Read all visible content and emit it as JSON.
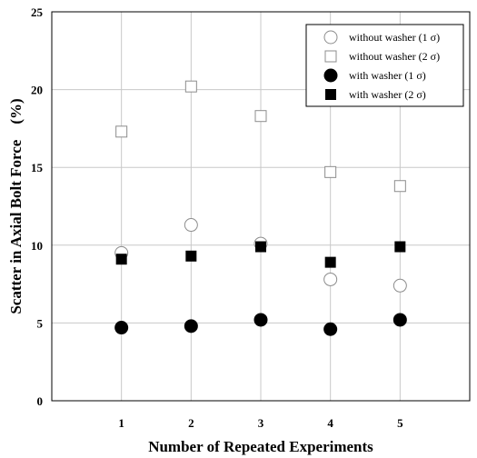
{
  "chart_data": {
    "type": "scatter",
    "xlabel": "Number of Repeated Experiments",
    "ylabel": "Scatter in Axial Bolt Force　(%)",
    "x": [
      1,
      2,
      3,
      4,
      5
    ],
    "xlim": [
      0,
      6
    ],
    "ylim": [
      0,
      25
    ],
    "xticks": [
      "1",
      "2",
      "3",
      "4",
      "5"
    ],
    "yticks": [
      "0",
      "5",
      "10",
      "15",
      "20",
      "25"
    ],
    "grid": true,
    "legend_position": "top-right",
    "series": [
      {
        "name": "without washer (1 σ)",
        "marker": "circle-open",
        "values": [
          9.5,
          11.3,
          10.1,
          7.8,
          7.4
        ]
      },
      {
        "name": "without washer (2 σ)",
        "marker": "square-open",
        "values": [
          17.3,
          20.2,
          18.3,
          14.7,
          13.8
        ]
      },
      {
        "name": "with washer (1 σ)",
        "marker": "circle-filled",
        "values": [
          4.7,
          4.8,
          5.2,
          4.6,
          5.2
        ]
      },
      {
        "name": "with washer (2 σ)",
        "marker": "square-filled",
        "values": [
          9.1,
          9.3,
          9.9,
          8.9,
          9.9
        ]
      }
    ],
    "colors": {
      "open_stroke": "#8c8c8c",
      "filled": "#000000",
      "grid": "#c8c8c8"
    }
  }
}
